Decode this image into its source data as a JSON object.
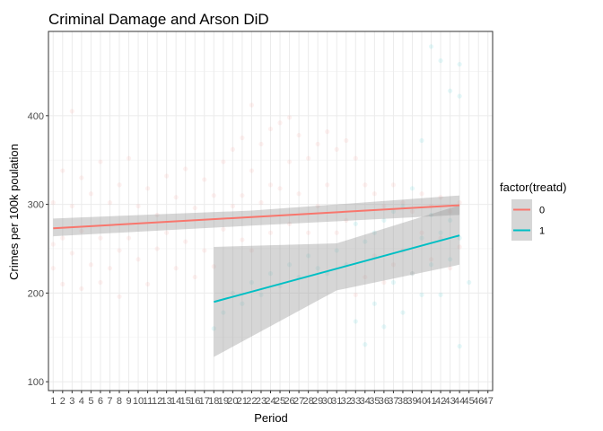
{
  "chart_data": {
    "type": "scatter",
    "title": "Criminal Damage and Arson DiD",
    "xlabel": "Period",
    "ylabel": "Crimes per 100k poulation",
    "x_ticks": [
      1,
      2,
      3,
      4,
      5,
      6,
      7,
      8,
      9,
      10,
      11,
      12,
      13,
      14,
      15,
      16,
      17,
      18,
      19,
      20,
      21,
      22,
      23,
      24,
      25,
      26,
      27,
      28,
      29,
      30,
      31,
      32,
      33,
      34,
      35,
      36,
      37,
      38,
      39,
      40,
      41,
      42,
      43,
      44,
      45,
      46,
      47
    ],
    "y_ticks": [
      100,
      200,
      300,
      400
    ],
    "xlim": [
      0.5,
      47.5
    ],
    "ylim": [
      90,
      495
    ],
    "grid": true,
    "legend": {
      "title": "factor(treatd)",
      "placement": "right",
      "entries": [
        {
          "label": "0",
          "color": "#F8766D"
        },
        {
          "label": "1",
          "color": "#00BFC4"
        }
      ]
    },
    "series": [
      {
        "name": "0",
        "color": "#F8766D",
        "fit_line": {
          "x": [
            1,
            44
          ],
          "y": [
            273,
            299
          ]
        },
        "ci_band": {
          "x": [
            1,
            22,
            44
          ],
          "lower": [
            264,
            276,
            288
          ],
          "upper": [
            284,
            293,
            310
          ]
        },
        "points": [
          [
            1,
            302
          ],
          [
            1,
            255
          ],
          [
            1,
            228
          ],
          [
            2,
            338
          ],
          [
            2,
            262
          ],
          [
            2,
            210
          ],
          [
            3,
            298
          ],
          [
            3,
            245
          ],
          [
            3,
            405
          ],
          [
            4,
            330
          ],
          [
            4,
            270
          ],
          [
            4,
            205
          ],
          [
            5,
            312
          ],
          [
            5,
            232
          ],
          [
            6,
            348
          ],
          [
            6,
            262
          ],
          [
            6,
            212
          ],
          [
            7,
            302
          ],
          [
            7,
            228
          ],
          [
            8,
            322
          ],
          [
            8,
            248
          ],
          [
            8,
            196
          ],
          [
            9,
            352
          ],
          [
            9,
            262
          ],
          [
            10,
            298
          ],
          [
            10,
            238
          ],
          [
            11,
            318
          ],
          [
            11,
            210
          ],
          [
            12,
            288
          ],
          [
            12,
            250
          ],
          [
            13,
            332
          ],
          [
            13,
            268
          ],
          [
            14,
            308
          ],
          [
            14,
            228
          ],
          [
            15,
            340
          ],
          [
            15,
            258
          ],
          [
            16,
            296
          ],
          [
            16,
            218
          ],
          [
            17,
            328
          ],
          [
            17,
            248
          ],
          [
            18,
            310
          ],
          [
            18,
            230
          ],
          [
            19,
            348
          ],
          [
            19,
            272
          ],
          [
            20,
            362
          ],
          [
            20,
            298
          ],
          [
            21,
            375
          ],
          [
            21,
            310
          ],
          [
            21,
            260
          ],
          [
            22,
            412
          ],
          [
            22,
            338
          ],
          [
            22,
            248
          ],
          [
            23,
            368
          ],
          [
            23,
            302
          ],
          [
            24,
            385
          ],
          [
            24,
            322
          ],
          [
            24,
            268
          ],
          [
            25,
            392
          ],
          [
            25,
            318
          ],
          [
            26,
            398
          ],
          [
            26,
            348
          ],
          [
            26,
            278
          ],
          [
            27,
            378
          ],
          [
            27,
            312
          ],
          [
            28,
            352
          ],
          [
            28,
            268
          ],
          [
            29,
            368
          ],
          [
            29,
            298
          ],
          [
            30,
            382
          ],
          [
            30,
            322
          ],
          [
            31,
            362
          ],
          [
            31,
            268
          ],
          [
            32,
            372
          ],
          [
            32,
            282
          ],
          [
            33,
            352
          ],
          [
            33,
            198
          ],
          [
            34,
            322
          ],
          [
            34,
            218
          ],
          [
            35,
            312
          ],
          [
            35,
            242
          ],
          [
            36,
            298
          ],
          [
            36,
            212
          ],
          [
            37,
            322
          ],
          [
            37,
            232
          ],
          [
            38,
            302
          ],
          [
            38,
            248
          ],
          [
            39,
            292
          ],
          [
            39,
            222
          ],
          [
            40,
            312
          ],
          [
            40,
            268
          ],
          [
            41,
            298
          ],
          [
            41,
            238
          ],
          [
            42,
            308
          ],
          [
            42,
            262
          ],
          [
            43,
            292
          ],
          [
            43,
            228
          ],
          [
            44,
            302
          ],
          [
            44,
            252
          ]
        ]
      },
      {
        "name": "1",
        "color": "#00BFC4",
        "fit_line": {
          "x": [
            18,
            44
          ],
          "y": [
            190,
            265
          ]
        },
        "ci_band": {
          "x": [
            18,
            31,
            44
          ],
          "lower": [
            128,
            203,
            232
          ],
          "upper": [
            252,
            256,
            299
          ]
        },
        "points": [
          [
            18,
            160
          ],
          [
            19,
            178
          ],
          [
            20,
            200
          ],
          [
            21,
            188
          ],
          [
            22,
            212
          ],
          [
            23,
            198
          ],
          [
            24,
            222
          ],
          [
            25,
            208
          ],
          [
            26,
            232
          ],
          [
            27,
            218
          ],
          [
            28,
            242
          ],
          [
            29,
            228
          ],
          [
            30,
            222
          ],
          [
            31,
            248
          ],
          [
            32,
            232
          ],
          [
            33,
            168
          ],
          [
            33,
            278
          ],
          [
            34,
            142
          ],
          [
            34,
            258
          ],
          [
            35,
            188
          ],
          [
            35,
            268
          ],
          [
            36,
            162
          ],
          [
            36,
            282
          ],
          [
            37,
            212
          ],
          [
            37,
            292
          ],
          [
            38,
            178
          ],
          [
            38,
            298
          ],
          [
            39,
            222
          ],
          [
            39,
            318
          ],
          [
            40,
            198
          ],
          [
            40,
            372
          ],
          [
            40,
            262
          ],
          [
            41,
            478
          ],
          [
            41,
            288
          ],
          [
            41,
            232
          ],
          [
            42,
            462
          ],
          [
            42,
            268
          ],
          [
            42,
            198
          ],
          [
            43,
            428
          ],
          [
            43,
            282
          ],
          [
            43,
            238
          ],
          [
            44,
            458
          ],
          [
            44,
            422
          ],
          [
            44,
            262
          ],
          [
            44,
            140
          ],
          [
            45,
            212
          ]
        ]
      }
    ]
  }
}
